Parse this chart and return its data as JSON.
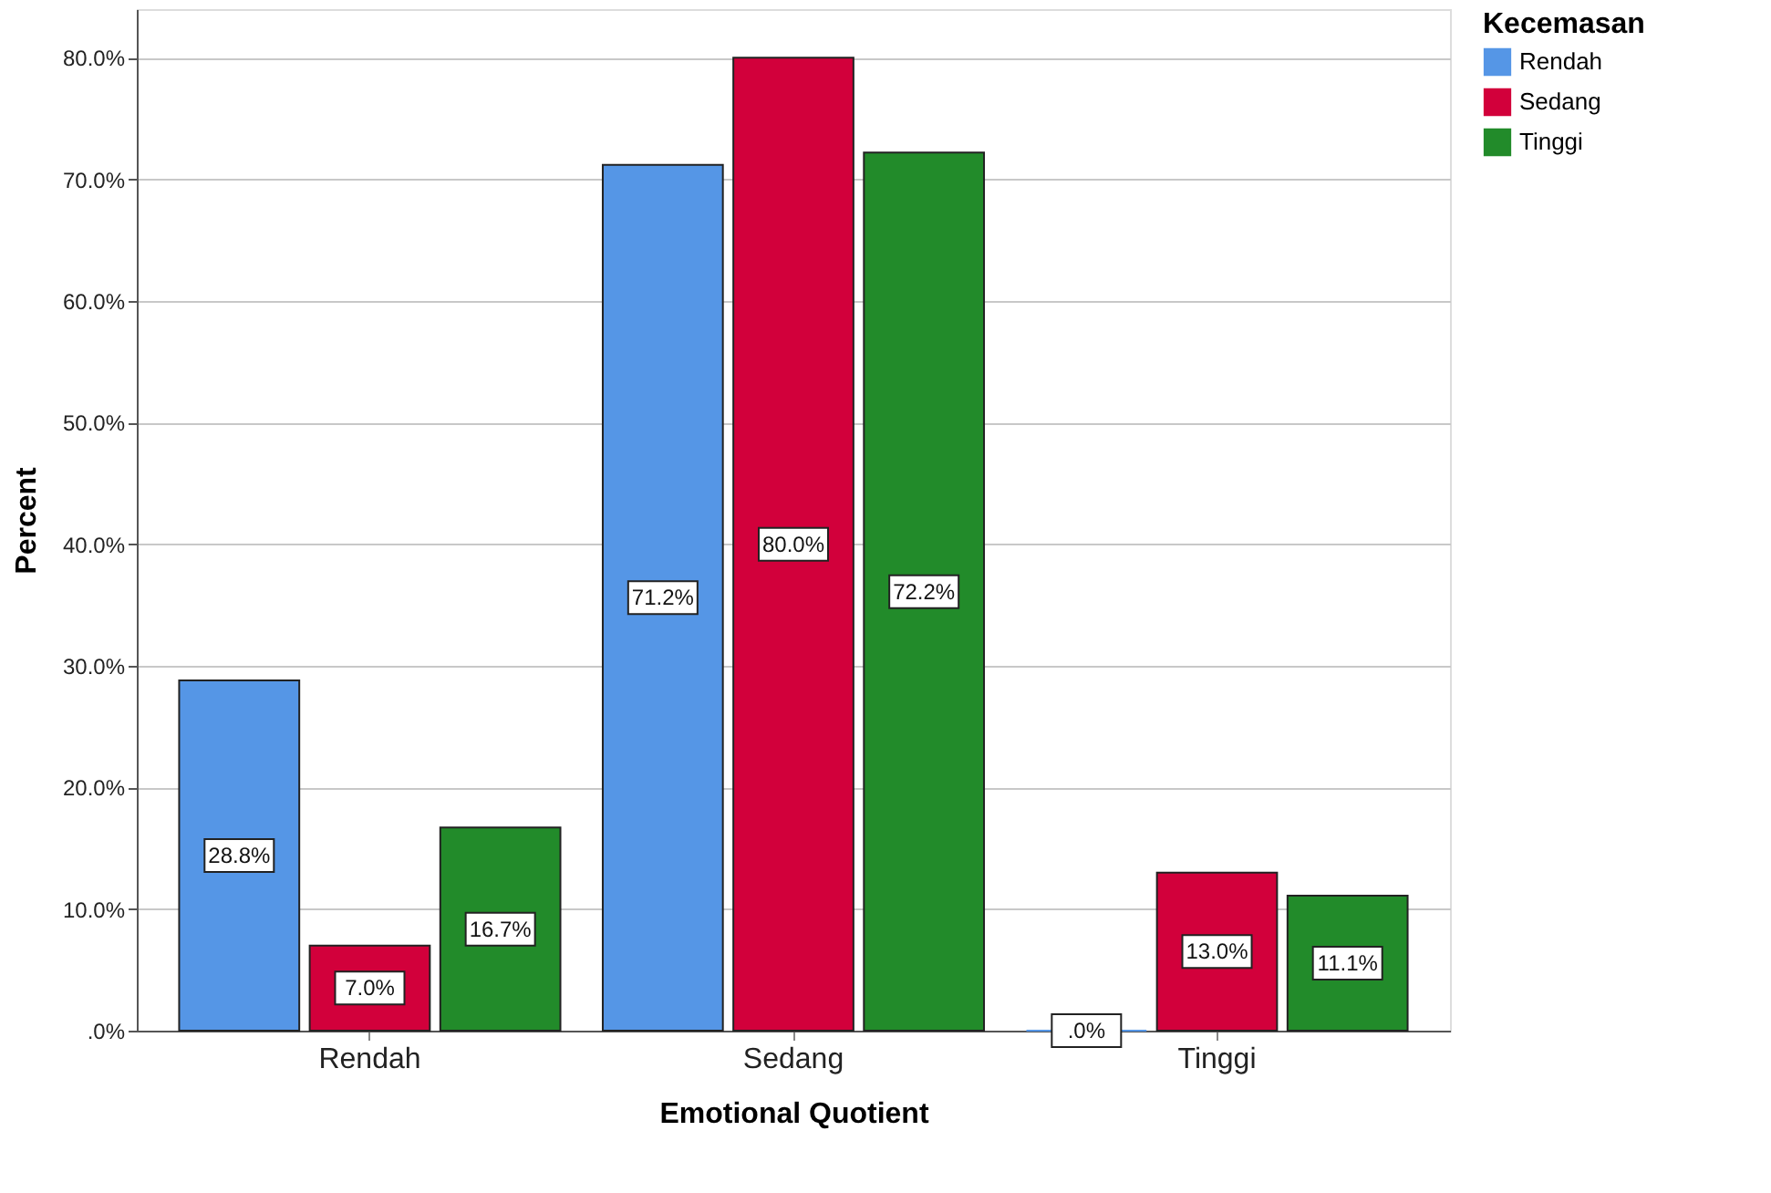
{
  "chart_data": {
    "type": "bar",
    "xlabel": "Emotional Quotient",
    "ylabel": "Percent",
    "legend_title": "Kecemasan",
    "legend": "top right",
    "grid": "y",
    "categories": [
      "Rendah",
      "Sedang",
      "Tinggi"
    ],
    "series": [
      {
        "name": "Rendah",
        "color": "#5596e6",
        "values": [
          28.8,
          71.2,
          0.0
        ],
        "value_labels": [
          "28.8%",
          "71.2%",
          ".0%"
        ]
      },
      {
        "name": "Sedang",
        "color": "#d2003b",
        "values": [
          7.0,
          80.0,
          13.0
        ],
        "value_labels": [
          "7.0%",
          "80.0%",
          "13.0%"
        ]
      },
      {
        "name": "Tinggi",
        "color": "#228b2a",
        "values": [
          16.7,
          72.2,
          11.1
        ],
        "value_labels": [
          "16.7%",
          "72.2%",
          "11.1%"
        ]
      }
    ],
    "ylim": [
      0,
      84
    ],
    "yticks": [
      {
        "value": 0,
        "label": ".0%"
      },
      {
        "value": 10,
        "label": "10.0%"
      },
      {
        "value": 20,
        "label": "20.0%"
      },
      {
        "value": 30,
        "label": "30.0%"
      },
      {
        "value": 40,
        "label": "40.0%"
      },
      {
        "value": 50,
        "label": "50.0%"
      },
      {
        "value": 60,
        "label": "60.0%"
      },
      {
        "value": 70,
        "label": "70.0%"
      },
      {
        "value": 80,
        "label": "80.0%"
      }
    ]
  }
}
